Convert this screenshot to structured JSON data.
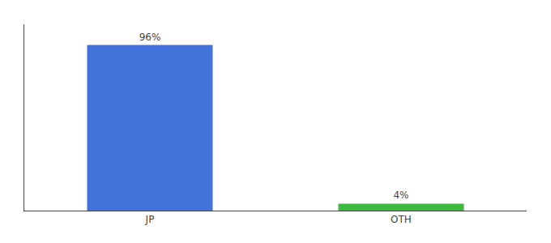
{
  "chart_data": {
    "type": "bar",
    "categories": [
      "JP",
      "OTH"
    ],
    "values": [
      96,
      4
    ],
    "value_labels": [
      "96%",
      "4%"
    ],
    "data_labels": true,
    "colors": [
      "#4472db",
      "#3dba3d"
    ],
    "ylim": [
      0,
      108
    ],
    "tick_labels": "x",
    "grid": false
  }
}
